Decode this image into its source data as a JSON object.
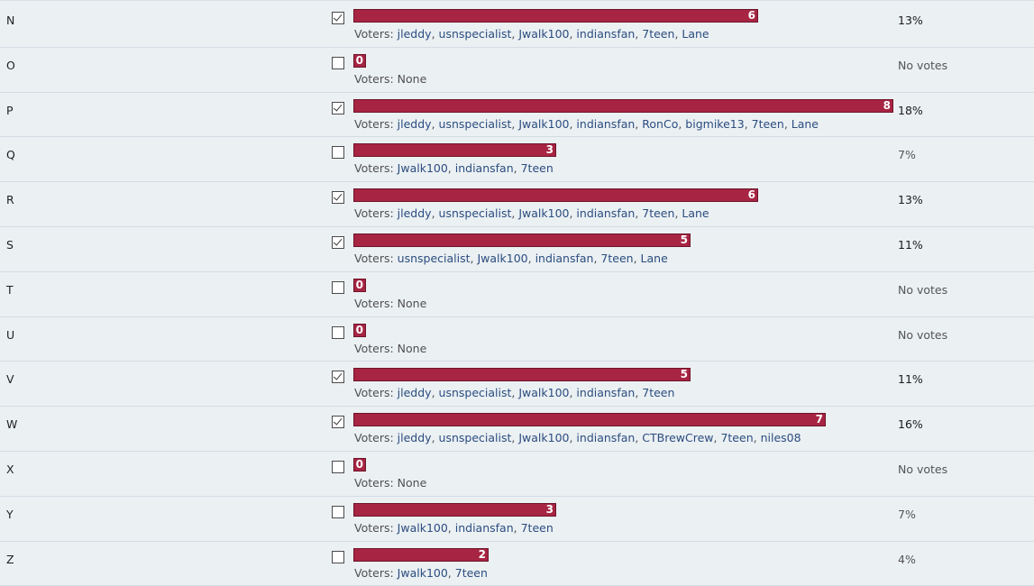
{
  "colors": {
    "background": "#ebf0f3",
    "bar_fill": "#a72443",
    "voter_link": "#2b4d7f"
  },
  "poll": {
    "voters_prefix": "Voters: ",
    "none_label": "None",
    "max_votes_reference": 8,
    "rows": [
      {
        "label": "N",
        "checked": true,
        "votes": 6,
        "bar_fraction": 0.75,
        "percent": "13%",
        "voters": [
          "jleddy",
          "usnspecialist",
          "Jwalk100",
          "indiansfan",
          "7teen",
          "Lane"
        ]
      },
      {
        "label": "O",
        "checked": false,
        "votes": 0,
        "bar_fraction": 0.0,
        "percent": "No votes",
        "voters": []
      },
      {
        "label": "P",
        "checked": true,
        "votes": 8,
        "bar_fraction": 1.0,
        "percent": "18%",
        "voters": [
          "jleddy",
          "usnspecialist",
          "Jwalk100",
          "indiansfan",
          "RonCo",
          "bigmike13",
          "7teen",
          "Lane"
        ]
      },
      {
        "label": "Q",
        "checked": false,
        "votes": 3,
        "bar_fraction": 0.375,
        "percent": "7%",
        "voters": [
          "Jwalk100",
          "indiansfan",
          "7teen"
        ]
      },
      {
        "label": "R",
        "checked": true,
        "votes": 6,
        "bar_fraction": 0.75,
        "percent": "13%",
        "voters": [
          "jleddy",
          "usnspecialist",
          "Jwalk100",
          "indiansfan",
          "7teen",
          "Lane"
        ]
      },
      {
        "label": "S",
        "checked": true,
        "votes": 5,
        "bar_fraction": 0.625,
        "percent": "11%",
        "voters": [
          "usnspecialist",
          "Jwalk100",
          "indiansfan",
          "7teen",
          "Lane"
        ]
      },
      {
        "label": "T",
        "checked": false,
        "votes": 0,
        "bar_fraction": 0.0,
        "percent": "No votes",
        "voters": []
      },
      {
        "label": "U",
        "checked": false,
        "votes": 0,
        "bar_fraction": 0.0,
        "percent": "No votes",
        "voters": []
      },
      {
        "label": "V",
        "checked": true,
        "votes": 5,
        "bar_fraction": 0.625,
        "percent": "11%",
        "voters": [
          "jleddy",
          "usnspecialist",
          "Jwalk100",
          "indiansfan",
          "7teen"
        ]
      },
      {
        "label": "W",
        "checked": true,
        "votes": 7,
        "bar_fraction": 0.875,
        "percent": "16%",
        "voters": [
          "jleddy",
          "usnspecialist",
          "Jwalk100",
          "indiansfan",
          "CTBrewCrew",
          "7teen",
          "niles08"
        ]
      },
      {
        "label": "X",
        "checked": false,
        "votes": 0,
        "bar_fraction": 0.0,
        "percent": "No votes",
        "voters": []
      },
      {
        "label": "Y",
        "checked": false,
        "votes": 3,
        "bar_fraction": 0.375,
        "percent": "7%",
        "voters": [
          "Jwalk100",
          "indiansfan",
          "7teen"
        ]
      },
      {
        "label": "Z",
        "checked": false,
        "votes": 2,
        "bar_fraction": 0.25,
        "percent": "4%",
        "voters": [
          "Jwalk100",
          "7teen"
        ]
      }
    ]
  }
}
